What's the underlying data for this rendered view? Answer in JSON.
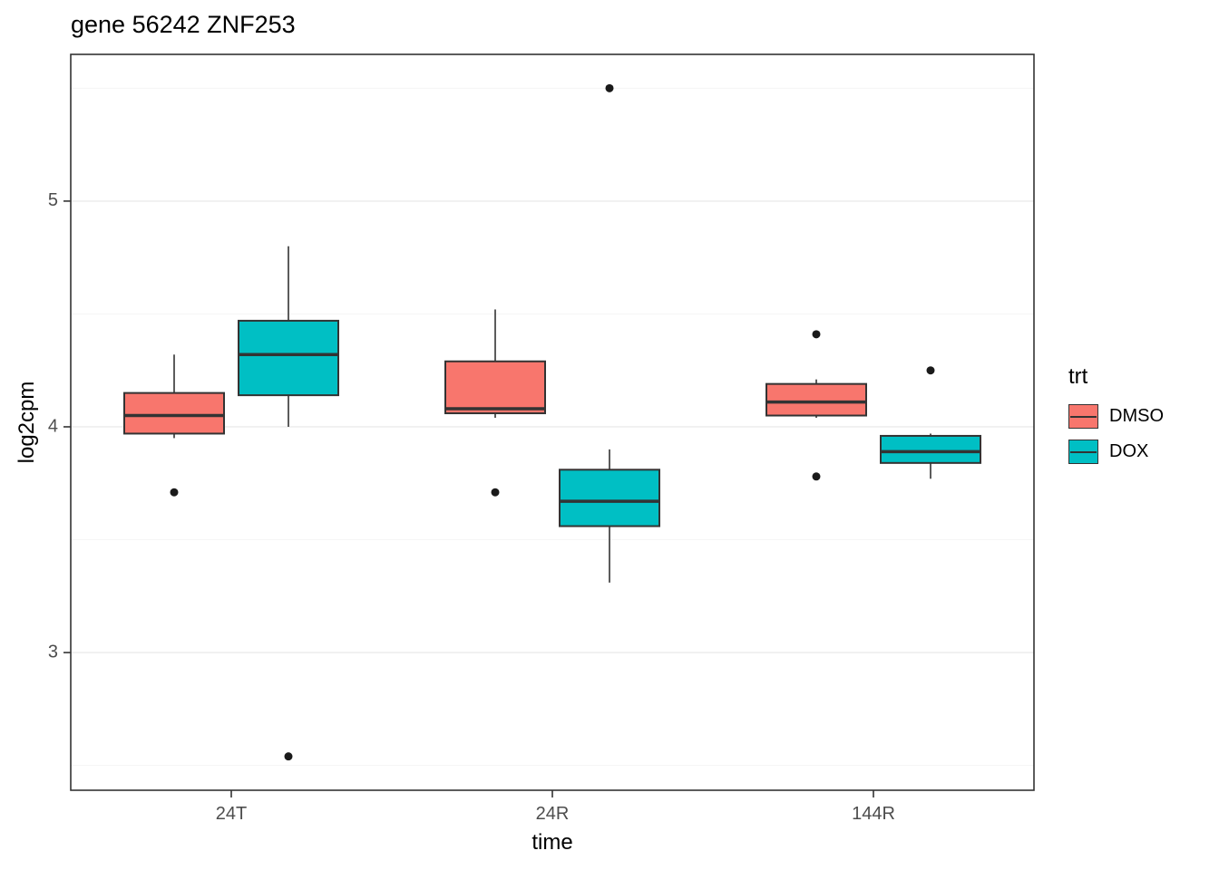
{
  "chart_data": {
    "type": "boxplot",
    "title": "gene 56242 ZNF253",
    "xlabel": "time",
    "ylabel": "log2cpm",
    "legend_title": "trt",
    "categories": [
      "24T",
      "24R",
      "144R"
    ],
    "y_ticks": [
      3,
      4,
      5
    ],
    "y_minor_ticks": [
      2.5,
      3.5,
      4.5,
      5.5
    ],
    "ylim": [
      2.39,
      5.65
    ],
    "legend_position": "right",
    "grid": true,
    "series": [
      {
        "name": "DMSO",
        "color": "#F8766D",
        "boxes": [
          {
            "category": "24T",
            "whisker_low": 3.95,
            "q1": 3.97,
            "median": 4.05,
            "q3": 4.15,
            "whisker_high": 4.32,
            "outliers": [
              3.71
            ]
          },
          {
            "category": "24R",
            "whisker_low": 4.04,
            "q1": 4.06,
            "median": 4.08,
            "q3": 4.29,
            "whisker_high": 4.52,
            "outliers": [
              3.71
            ]
          },
          {
            "category": "144R",
            "whisker_low": 4.04,
            "q1": 4.05,
            "median": 4.11,
            "q3": 4.19,
            "whisker_high": 4.21,
            "outliers": [
              4.41,
              3.78
            ]
          }
        ]
      },
      {
        "name": "DOX",
        "color": "#00BFC4",
        "boxes": [
          {
            "category": "24T",
            "whisker_low": 4.0,
            "q1": 4.14,
            "median": 4.32,
            "q3": 4.47,
            "whisker_high": 4.8,
            "outliers": [
              2.54
            ]
          },
          {
            "category": "24R",
            "whisker_low": 3.31,
            "q1": 3.56,
            "median": 3.67,
            "q3": 3.81,
            "whisker_high": 3.9,
            "outliers": [
              5.5
            ]
          },
          {
            "category": "144R",
            "whisker_low": 3.77,
            "q1": 3.84,
            "median": 3.89,
            "q3": 3.96,
            "whisker_high": 3.97,
            "outliers": [
              4.25
            ]
          }
        ]
      }
    ],
    "style": {
      "panel_background": "#ffffff",
      "panel_border": "#333333",
      "grid_major": "#EBEBEB",
      "grid_minor": "#F5F5F5",
      "box_stroke": "#333333",
      "outlier_color": "#1A1A1A",
      "tick_color": "#333333",
      "tick_label_color": "#4D4D4D"
    }
  }
}
